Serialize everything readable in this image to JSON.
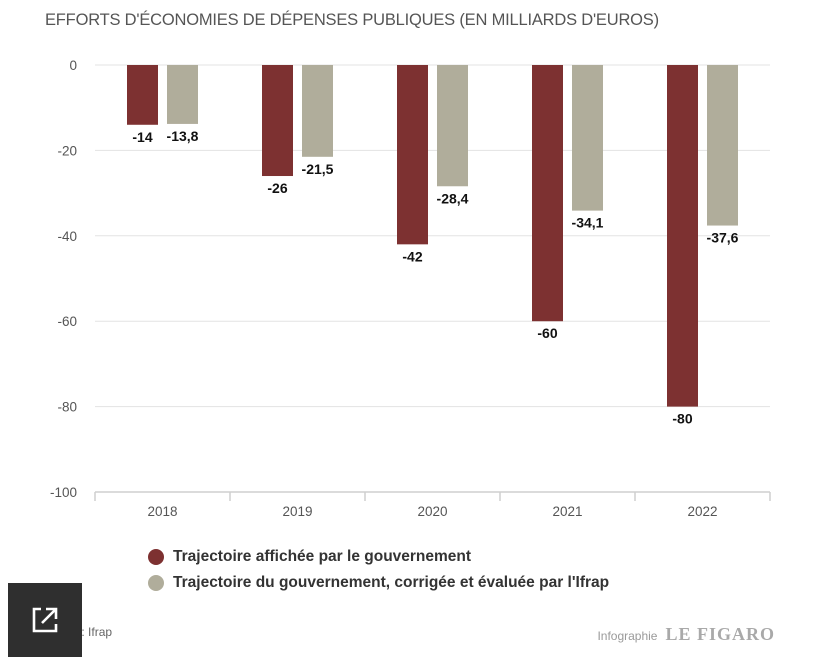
{
  "chart_data": {
    "type": "bar",
    "title": "EFFORTS D'ÉCONOMIES DE DÉPENSES PUBLIQUES (EN MILLIARDS D'EUROS)",
    "categories": [
      "2018",
      "2019",
      "2020",
      "2021",
      "2022"
    ],
    "series": [
      {
        "name": "Trajectoire affichée par le gouvernement",
        "color": "#7d3131",
        "values": [
          -14,
          -26,
          -42,
          -60,
          -80
        ],
        "labels": [
          "-14",
          "-26",
          "-42",
          "-60",
          "-80"
        ]
      },
      {
        "name": "Trajectoire du gouvernement, corrigée et évaluée par l'Ifrap",
        "color": "#b0ad9b",
        "values": [
          -13.8,
          -21.5,
          -28.4,
          -34.1,
          -37.6
        ],
        "labels": [
          "-13,8",
          "-21,5",
          "-28,4",
          "-34,1",
          "-37,6"
        ]
      }
    ],
    "ylim": [
      -100,
      0
    ],
    "yticks": [
      0,
      -20,
      -40,
      -60,
      -80,
      -100
    ],
    "ytick_labels": [
      "0",
      "-20",
      "-40",
      "-60",
      "-80",
      "-100"
    ],
    "xlabel": "",
    "ylabel": "",
    "grid": true,
    "legend_position": "bottom-left"
  },
  "source": "Source : Ifrap",
  "credit": {
    "label": "Infographie",
    "brand": "LE FIGARO"
  },
  "share_icon": "external-link-icon"
}
